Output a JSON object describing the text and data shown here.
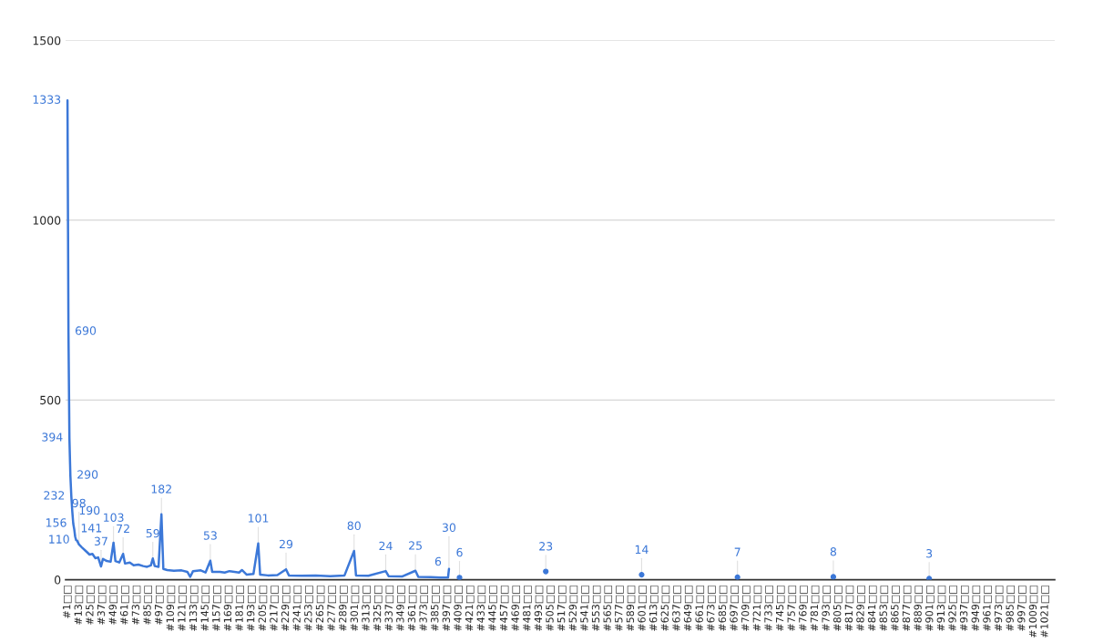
{
  "chart_data": {
    "type": "line",
    "ylim": [
      0,
      1500
    ],
    "yticks": [
      0,
      500,
      1000,
      1500
    ],
    "xlim": [
      -1,
      1031
    ],
    "grid": "y",
    "xticks": [
      {
        "value": 1,
        "label": "#1□□"
      },
      {
        "value": 13,
        "label": "#13□□"
      },
      {
        "value": 25,
        "label": "#25□□"
      },
      {
        "value": 37,
        "label": "#37□□"
      },
      {
        "value": 49,
        "label": "#49□□"
      },
      {
        "value": 61,
        "label": "#61□□"
      },
      {
        "value": 73,
        "label": "#73□□"
      },
      {
        "value": 85,
        "label": "#85□□"
      },
      {
        "value": 97,
        "label": "#97□□"
      },
      {
        "value": 109,
        "label": "#109□□"
      },
      {
        "value": 121,
        "label": "#121□□"
      },
      {
        "value": 133,
        "label": "#133□□"
      },
      {
        "value": 145,
        "label": "#145□□"
      },
      {
        "value": 157,
        "label": "#157□□"
      },
      {
        "value": 169,
        "label": "#169□□"
      },
      {
        "value": 181,
        "label": "#181□□"
      },
      {
        "value": 193,
        "label": "#193□□"
      },
      {
        "value": 205,
        "label": "#205□□"
      },
      {
        "value": 217,
        "label": "#217□□"
      },
      {
        "value": 229,
        "label": "#229□□"
      },
      {
        "value": 241,
        "label": "#241□□"
      },
      {
        "value": 253,
        "label": "#253□□"
      },
      {
        "value": 265,
        "label": "#265□□"
      },
      {
        "value": 277,
        "label": "#277□□"
      },
      {
        "value": 289,
        "label": "#289□□"
      },
      {
        "value": 301,
        "label": "#301□□"
      },
      {
        "value": 313,
        "label": "#313□□"
      },
      {
        "value": 325,
        "label": "#325□□"
      },
      {
        "value": 337,
        "label": "#337□□"
      },
      {
        "value": 349,
        "label": "#349□□"
      },
      {
        "value": 361,
        "label": "#361□□"
      },
      {
        "value": 373,
        "label": "#373□□"
      },
      {
        "value": 385,
        "label": "#385□□"
      },
      {
        "value": 397,
        "label": "#397□□"
      },
      {
        "value": 409,
        "label": "#409□□"
      },
      {
        "value": 421,
        "label": "#421□□"
      },
      {
        "value": 433,
        "label": "#433□□"
      },
      {
        "value": 445,
        "label": "#445□□"
      },
      {
        "value": 457,
        "label": "#457□□"
      },
      {
        "value": 469,
        "label": "#469□□"
      },
      {
        "value": 481,
        "label": "#481□□"
      },
      {
        "value": 493,
        "label": "#493□□"
      },
      {
        "value": 505,
        "label": "#505□□"
      },
      {
        "value": 517,
        "label": "#517□□"
      },
      {
        "value": 529,
        "label": "#529□□"
      },
      {
        "value": 541,
        "label": "#541□□"
      },
      {
        "value": 553,
        "label": "#553□□"
      },
      {
        "value": 565,
        "label": "#565□□"
      },
      {
        "value": 577,
        "label": "#577□□"
      },
      {
        "value": 589,
        "label": "#589□□"
      },
      {
        "value": 601,
        "label": "#601□□"
      },
      {
        "value": 613,
        "label": "#613□□"
      },
      {
        "value": 625,
        "label": "#625□□"
      },
      {
        "value": 637,
        "label": "#637□□"
      },
      {
        "value": 649,
        "label": "#649□□"
      },
      {
        "value": 661,
        "label": "#661□□"
      },
      {
        "value": 673,
        "label": "#673□□"
      },
      {
        "value": 685,
        "label": "#685□□"
      },
      {
        "value": 697,
        "label": "#697□□"
      },
      {
        "value": 709,
        "label": "#709□□"
      },
      {
        "value": 721,
        "label": "#721□□"
      },
      {
        "value": 733,
        "label": "#733□□"
      },
      {
        "value": 745,
        "label": "#745□□"
      },
      {
        "value": 757,
        "label": "#757□□"
      },
      {
        "value": 769,
        "label": "#769□□"
      },
      {
        "value": 781,
        "label": "#781□□"
      },
      {
        "value": 793,
        "label": "#793□□"
      },
      {
        "value": 805,
        "label": "#805□□"
      },
      {
        "value": 817,
        "label": "#817□□"
      },
      {
        "value": 829,
        "label": "#829□□"
      },
      {
        "value": 841,
        "label": "#841□□"
      },
      {
        "value": 853,
        "label": "#853□□"
      },
      {
        "value": 865,
        "label": "#865□□"
      },
      {
        "value": 877,
        "label": "#877□□"
      },
      {
        "value": 889,
        "label": "#889□□"
      },
      {
        "value": 901,
        "label": "#901□□"
      },
      {
        "value": 913,
        "label": "#913□□"
      },
      {
        "value": 925,
        "label": "#925□□"
      },
      {
        "value": 937,
        "label": "#937□□"
      },
      {
        "value": 949,
        "label": "#949□□"
      },
      {
        "value": 961,
        "label": "#961□□"
      },
      {
        "value": 973,
        "label": "#973□□"
      },
      {
        "value": 985,
        "label": "#985□□"
      },
      {
        "value": 997,
        "label": "#997□□"
      },
      {
        "value": 1009,
        "label": "#1009□□"
      },
      {
        "value": 1021,
        "label": "#1021□□"
      }
    ],
    "series": [
      {
        "color": "#3c78d8",
        "x": [
          1,
          2,
          3,
          4,
          5,
          6,
          7,
          8,
          9,
          10,
          11,
          13,
          16,
          20,
          24,
          27,
          30,
          33,
          36,
          38,
          42,
          46,
          49,
          51,
          55,
          59,
          61,
          66,
          70,
          75,
          80,
          84,
          88,
          90,
          92,
          96,
          99,
          101,
          105,
          112,
          120,
          126,
          129,
          132,
          140,
          145,
          150,
          152,
          160,
          165,
          170,
          180,
          183,
          188,
          195,
          200,
          202,
          210,
          220,
          229,
          232,
          245,
          260,
          275,
          290,
          300,
          302,
          315,
          333,
          336,
          350,
          364,
          367,
          380,
          390,
          398,
          399
        ],
        "values": [
          1333,
          690,
          394,
          290,
          232,
          190,
          156,
          141,
          120,
          110,
          109,
          98,
          90,
          80,
          70,
          72,
          60,
          62,
          37,
          58,
          52,
          50,
          103,
          52,
          48,
          72,
          45,
          48,
          40,
          42,
          38,
          36,
          40,
          59,
          38,
          36,
          182,
          30,
          27,
          25,
          26,
          22,
          8,
          24,
          26,
          20,
          53,
          22,
          22,
          20,
          24,
          20,
          27,
          14,
          16,
          101,
          14,
          12,
          13,
          29,
          12,
          11,
          12,
          10,
          12,
          80,
          12,
          11,
          24,
          10,
          9,
          25,
          8,
          7,
          6,
          6,
          30
        ],
        "value_labels": [
          "1333",
          "690",
          "394",
          "290",
          "232",
          "190",
          "156",
          "141",
          null,
          "110",
          null,
          "98",
          null,
          null,
          null,
          null,
          null,
          null,
          "37",
          null,
          null,
          null,
          "103",
          null,
          null,
          "72",
          null,
          null,
          null,
          null,
          null,
          null,
          null,
          "59",
          null,
          null,
          "182",
          null,
          null,
          null,
          null,
          null,
          null,
          null,
          null,
          null,
          "53",
          null,
          null,
          null,
          null,
          null,
          null,
          null,
          null,
          "101",
          null,
          null,
          null,
          "29",
          null,
          null,
          null,
          null,
          null,
          "80",
          null,
          null,
          "24",
          null,
          null,
          "25",
          null,
          null,
          null,
          "6",
          "30"
        ]
      },
      {
        "type": "scatter",
        "color": "#3c78d8",
        "x": [
          410,
          500,
          600,
          700,
          800,
          900
        ],
        "values": [
          6,
          23,
          14,
          7,
          8,
          3
        ],
        "value_labels": [
          "6",
          "23",
          "14",
          "7",
          "8",
          "3"
        ]
      }
    ]
  }
}
